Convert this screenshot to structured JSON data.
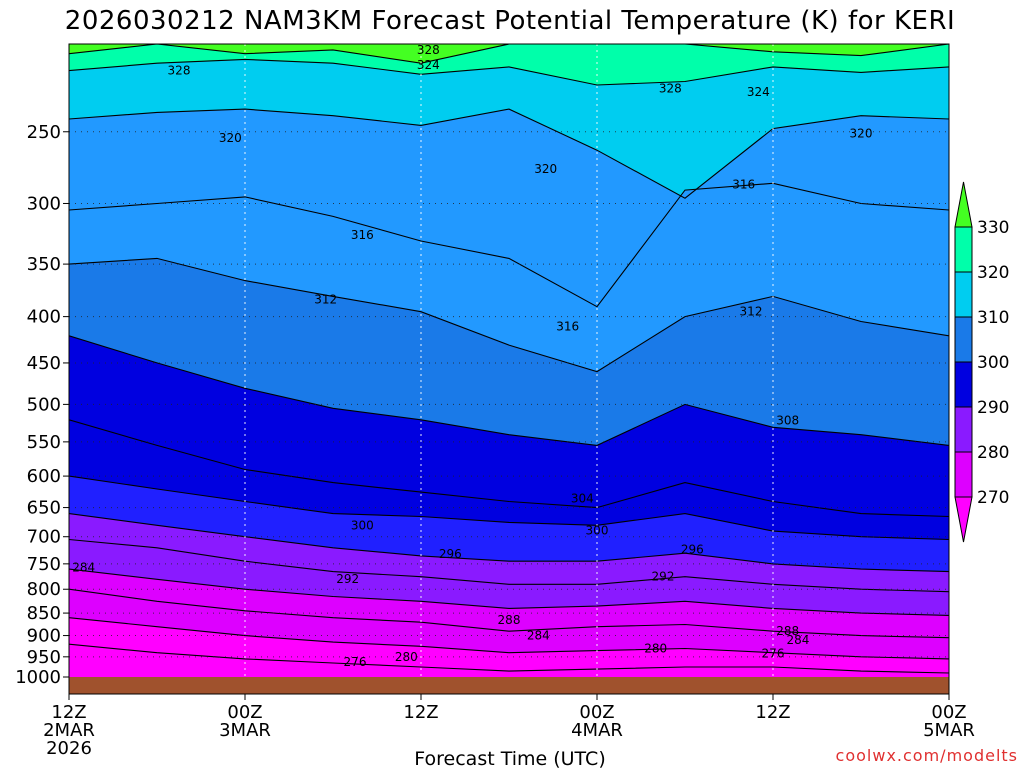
{
  "chart_data": {
    "type": "filled-contour",
    "title": "2026030212 NAM3KM Forecast Potential Temperature (K) for KERI",
    "xlabel": "Forecast Time (UTC)",
    "ylabel": "",
    "credit": "coolwx.com/modelts",
    "y_axis": {
      "scale": "log-pressure",
      "range_hPa": [
        1000,
        200
      ],
      "ticks": [
        250,
        300,
        350,
        400,
        450,
        500,
        550,
        600,
        650,
        700,
        750,
        800,
        850,
        900,
        950,
        1000
      ]
    },
    "x_axis": {
      "range_hours": [
        0,
        60
      ],
      "ticks": [
        {
          "hour": 0,
          "line1": "12Z",
          "line2": "2MAR",
          "line3": "2026"
        },
        {
          "hour": 12,
          "line1": "00Z",
          "line2": "3MAR",
          "line3": ""
        },
        {
          "hour": 24,
          "line1": "12Z",
          "line2": "",
          "line3": ""
        },
        {
          "hour": 36,
          "line1": "00Z",
          "line2": "4MAR",
          "line3": ""
        },
        {
          "hour": 48,
          "line1": "12Z",
          "line2": "",
          "line3": ""
        },
        {
          "hour": 60,
          "line1": "00Z",
          "line2": "5MAR",
          "line3": ""
        }
      ]
    },
    "colorbar": {
      "levels": [
        270,
        280,
        290,
        300,
        310,
        320,
        330
      ],
      "colors": [
        "#ff00ff",
        "#dd00ff",
        "#8a1aff",
        "#2020ff",
        "#0000e0",
        "#1a7ae8",
        "#2299ff",
        "#00cdf0",
        "#00ffaa",
        "#44ff22"
      ]
    },
    "contour_interval_K": 2,
    "isentropes": [
      {
        "theta": 328,
        "p_hPa": [
          205,
          200,
          205,
          203,
          210,
          200,
          200,
          200,
          204,
          206,
          200
        ]
      },
      {
        "theta": 324,
        "p_hPa": [
          214,
          210,
          208,
          210,
          216,
          212,
          222,
          220,
          212,
          215,
          212
        ]
      },
      {
        "theta": 320,
        "p_hPa": [
          242,
          238,
          236,
          240,
          246,
          236,
          262,
          296,
          248,
          240,
          242
        ]
      },
      {
        "theta": 316,
        "p_hPa": [
          305,
          300,
          295,
          310,
          330,
          345,
          390,
          290,
          285,
          300,
          305
        ]
      },
      {
        "theta": 312,
        "p_hPa": [
          350,
          345,
          365,
          380,
          395,
          430,
          460,
          400,
          380,
          405,
          420
        ]
      },
      {
        "theta": 308,
        "p_hPa": [
          420,
          450,
          480,
          505,
          520,
          540,
          555,
          500,
          530,
          540,
          555
        ]
      },
      {
        "theta": 304,
        "p_hPa": [
          520,
          555,
          590,
          610,
          625,
          640,
          650,
          610,
          640,
          660,
          665
        ]
      },
      {
        "theta": 300,
        "p_hPa": [
          600,
          620,
          640,
          660,
          665,
          675,
          680,
          660,
          690,
          700,
          705
        ]
      },
      {
        "theta": 296,
        "p_hPa": [
          660,
          680,
          700,
          720,
          735,
          745,
          745,
          730,
          750,
          760,
          765
        ]
      },
      {
        "theta": 292,
        "p_hPa": [
          705,
          720,
          745,
          765,
          775,
          790,
          790,
          775,
          790,
          800,
          805
        ]
      },
      {
        "theta": 288,
        "p_hPa": [
          760,
          780,
          800,
          815,
          825,
          840,
          835,
          825,
          840,
          850,
          855
        ]
      },
      {
        "theta": 284,
        "p_hPa": [
          800,
          825,
          845,
          860,
          870,
          890,
          880,
          875,
          890,
          900,
          905
        ]
      },
      {
        "theta": 280,
        "p_hPa": [
          860,
          880,
          900,
          915,
          925,
          940,
          935,
          930,
          940,
          950,
          955
        ]
      },
      {
        "theta": 276,
        "p_hPa": [
          920,
          940,
          955,
          965,
          975,
          985,
          980,
          975,
          975,
          985,
          990
        ]
      }
    ],
    "contour_labels": [
      {
        "text": "328",
        "hour": 24.5,
        "p_hPa": 203
      },
      {
        "text": "328",
        "hour": 7.5,
        "p_hPa": 214
      },
      {
        "text": "324",
        "hour": 24.5,
        "p_hPa": 211
      },
      {
        "text": "328",
        "hour": 41,
        "p_hPa": 224
      },
      {
        "text": "324",
        "hour": 47,
        "p_hPa": 226
      },
      {
        "text": "320",
        "hour": 11,
        "p_hPa": 254
      },
      {
        "text": "320",
        "hour": 54,
        "p_hPa": 251
      },
      {
        "text": "320",
        "hour": 32.5,
        "p_hPa": 275
      },
      {
        "text": "316",
        "hour": 46,
        "p_hPa": 286
      },
      {
        "text": "316",
        "hour": 20,
        "p_hPa": 325
      },
      {
        "text": "312",
        "hour": 17.5,
        "p_hPa": 383
      },
      {
        "text": "316",
        "hour": 34,
        "p_hPa": 410
      },
      {
        "text": "312",
        "hour": 46.5,
        "p_hPa": 395
      },
      {
        "text": "308",
        "hour": 49,
        "p_hPa": 521
      },
      {
        "text": "304",
        "hour": 35,
        "p_hPa": 635
      },
      {
        "text": "300",
        "hour": 20,
        "p_hPa": 680
      },
      {
        "text": "300",
        "hour": 36,
        "p_hPa": 689
      },
      {
        "text": "296",
        "hour": 26,
        "p_hPa": 731
      },
      {
        "text": "296",
        "hour": 42.5,
        "p_hPa": 723
      },
      {
        "text": "292",
        "hour": 19,
        "p_hPa": 779
      },
      {
        "text": "292",
        "hour": 40.5,
        "p_hPa": 775
      },
      {
        "text": "284",
        "hour": 1,
        "p_hPa": 757
      },
      {
        "text": "288",
        "hour": 30,
        "p_hPa": 865
      },
      {
        "text": "284",
        "hour": 32,
        "p_hPa": 900
      },
      {
        "text": "288",
        "hour": 49,
        "p_hPa": 890
      },
      {
        "text": "284",
        "hour": 49.7,
        "p_hPa": 910
      },
      {
        "text": "280",
        "hour": 40,
        "p_hPa": 930
      },
      {
        "text": "280",
        "hour": 23,
        "p_hPa": 950
      },
      {
        "text": "276",
        "hour": 19.5,
        "p_hPa": 962
      },
      {
        "text": "276",
        "hour": 48,
        "p_hPa": 942
      }
    ]
  }
}
